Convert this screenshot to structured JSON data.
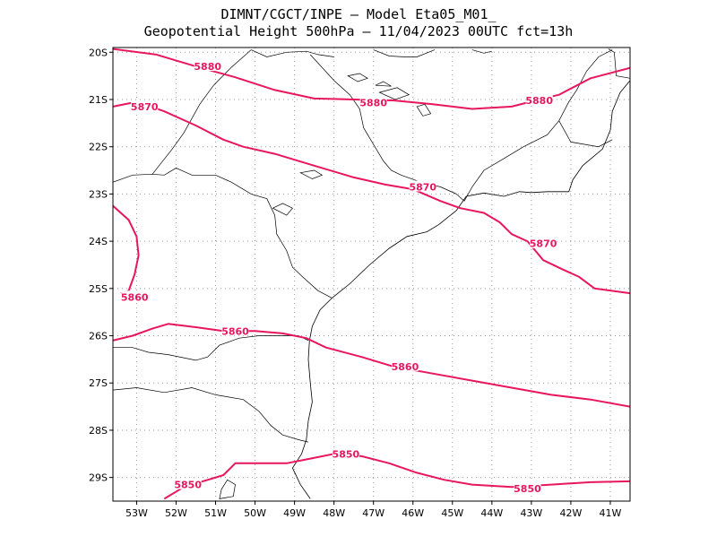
{
  "header": {
    "line1": "DIMNT/CGCT/INPE  –  Model Eta05_M01_",
    "line2": "Geopotential Height 500hPa –  11/04/2023 00UTC fct=13h"
  },
  "colors": {
    "contour": "#e8175d",
    "coast": "#000000",
    "grid": "#9a9a9a"
  },
  "map": {
    "lon_range": [
      -53.6,
      -40.5
    ],
    "lat_range": [
      -29.5,
      -19.9
    ],
    "lon_ticks": [
      {
        "value": -53,
        "label": "53W"
      },
      {
        "value": -52,
        "label": "52W"
      },
      {
        "value": -51,
        "label": "51W"
      },
      {
        "value": -50,
        "label": "50W"
      },
      {
        "value": -49,
        "label": "49W"
      },
      {
        "value": -48,
        "label": "48W"
      },
      {
        "value": -47,
        "label": "47W"
      },
      {
        "value": -46,
        "label": "46W"
      },
      {
        "value": -45,
        "label": "45W"
      },
      {
        "value": -44,
        "label": "44W"
      },
      {
        "value": -43,
        "label": "43W"
      },
      {
        "value": -42,
        "label": "42W"
      },
      {
        "value": -41,
        "label": "41W"
      }
    ],
    "lat_ticks": [
      {
        "value": -20,
        "label": "20S"
      },
      {
        "value": -21,
        "label": "21S"
      },
      {
        "value": -22,
        "label": "22S"
      },
      {
        "value": -23,
        "label": "23S"
      },
      {
        "value": -24,
        "label": "24S"
      },
      {
        "value": -25,
        "label": "25S"
      },
      {
        "value": -26,
        "label": "26S"
      },
      {
        "value": -27,
        "label": "27S"
      },
      {
        "value": -28,
        "label": "28S"
      },
      {
        "value": -29,
        "label": "29S"
      }
    ],
    "grid": true
  },
  "contours": [
    {
      "value": 5880,
      "points": [
        [
          -53.6,
          -19.93
        ],
        [
          -52.5,
          -20.05
        ],
        [
          -51.5,
          -20.3
        ],
        [
          -50.5,
          -20.53
        ],
        [
          -49.5,
          -20.8
        ],
        [
          -48.5,
          -20.98
        ],
        [
          -47.5,
          -21.0
        ],
        [
          -46.5,
          -21.02
        ],
        [
          -45.5,
          -21.1
        ],
        [
          -44.5,
          -21.2
        ],
        [
          -43.5,
          -21.15
        ],
        [
          -42.8,
          -21.0
        ],
        [
          -42.3,
          -20.9
        ],
        [
          -41.5,
          -20.55
        ],
        [
          -40.5,
          -20.33
        ]
      ]
    },
    {
      "value": 5870,
      "points": [
        [
          -53.6,
          -21.15
        ],
        [
          -53.0,
          -21.05
        ],
        [
          -52.3,
          -21.25
        ],
        [
          -51.5,
          -21.55
        ],
        [
          -50.8,
          -21.85
        ],
        [
          -50.3,
          -22.0
        ],
        [
          -49.5,
          -22.15
        ],
        [
          -48.5,
          -22.4
        ],
        [
          -47.5,
          -22.65
        ],
        [
          -46.7,
          -22.8
        ],
        [
          -46.0,
          -22.9
        ],
        [
          -45.3,
          -23.15
        ],
        [
          -44.8,
          -23.3
        ],
        [
          -44.2,
          -23.4
        ],
        [
          -43.8,
          -23.6
        ],
        [
          -43.5,
          -23.85
        ],
        [
          -43.1,
          -24.0
        ],
        [
          -42.9,
          -24.2
        ],
        [
          -42.7,
          -24.4
        ],
        [
          -42.2,
          -24.6
        ],
        [
          -41.8,
          -24.75
        ],
        [
          -41.4,
          -25.0
        ],
        [
          -40.5,
          -25.1
        ]
      ]
    },
    {
      "value": 5860,
      "points": [
        [
          -53.6,
          -23.25
        ],
        [
          -53.2,
          -23.55
        ],
        [
          -53.0,
          -23.9
        ],
        [
          -52.95,
          -24.3
        ],
        [
          -53.05,
          -24.7
        ],
        [
          -53.2,
          -25.05
        ],
        [
          -53.4,
          -25.1
        ]
      ]
    },
    {
      "value": 5860,
      "points": [
        [
          -53.6,
          -26.1
        ],
        [
          -53.1,
          -26.0
        ],
        [
          -52.6,
          -25.85
        ],
        [
          -52.2,
          -25.75
        ],
        [
          -51.5,
          -25.82
        ],
        [
          -50.8,
          -25.9
        ],
        [
          -50.0,
          -25.9
        ],
        [
          -49.3,
          -25.95
        ],
        [
          -48.7,
          -26.05
        ],
        [
          -48.2,
          -26.25
        ],
        [
          -47.3,
          -26.45
        ],
        [
          -46.5,
          -26.65
        ],
        [
          -45.5,
          -26.8
        ],
        [
          -44.5,
          -26.95
        ],
        [
          -43.5,
          -27.1
        ],
        [
          -42.5,
          -27.25
        ],
        [
          -41.5,
          -27.35
        ],
        [
          -40.5,
          -27.5
        ]
      ]
    },
    {
      "value": 5850,
      "points": [
        [
          -52.3,
          -29.45
        ],
        [
          -51.8,
          -29.2
        ],
        [
          -51.2,
          -29.05
        ],
        [
          -50.8,
          -28.95
        ],
        [
          -50.5,
          -28.7
        ],
        [
          -49.8,
          -28.7
        ],
        [
          -49.2,
          -28.7
        ],
        [
          -48.6,
          -28.6
        ],
        [
          -48.0,
          -28.5
        ],
        [
          -47.3,
          -28.55
        ],
        [
          -46.6,
          -28.7
        ],
        [
          -45.9,
          -28.9
        ],
        [
          -45.2,
          -29.05
        ],
        [
          -44.5,
          -29.15
        ],
        [
          -43.5,
          -29.2
        ],
        [
          -42.5,
          -29.15
        ],
        [
          -41.5,
          -29.1
        ],
        [
          -40.5,
          -29.08
        ]
      ]
    }
  ],
  "contour_labels": [
    {
      "text": "5880",
      "lon": -51.2,
      "lat": -20.3
    },
    {
      "text": "5880",
      "lon": -47.0,
      "lat": -21.07
    },
    {
      "text": "5880",
      "lon": -42.8,
      "lat": -21.02
    },
    {
      "text": "5870",
      "lon": -52.8,
      "lat": -21.15
    },
    {
      "text": "5870",
      "lon": -45.75,
      "lat": -22.85
    },
    {
      "text": "5870",
      "lon": -42.7,
      "lat": -24.05
    },
    {
      "text": "5860",
      "lon": -53.05,
      "lat": -25.18
    },
    {
      "text": "5860",
      "lon": -50.5,
      "lat": -25.9
    },
    {
      "text": "5860",
      "lon": -46.2,
      "lat": -26.65
    },
    {
      "text": "5850",
      "lon": -47.7,
      "lat": -28.5
    },
    {
      "text": "5850",
      "lon": -43.1,
      "lat": -29.23
    },
    {
      "text": "5850",
      "lon": -51.7,
      "lat": -29.15
    }
  ],
  "boundaries": [
    [
      [
        -53.6,
        -27.15
      ],
      [
        -53.0,
        -27.1
      ],
      [
        -52.3,
        -27.2
      ],
      [
        -51.6,
        -27.1
      ],
      [
        -51.0,
        -27.25
      ],
      [
        -50.3,
        -27.35
      ],
      [
        -49.9,
        -27.6
      ],
      [
        -49.6,
        -27.9
      ],
      [
        -49.3,
        -28.1
      ],
      [
        -48.9,
        -28.2
      ],
      [
        -48.65,
        -28.25
      ]
    ],
    [
      [
        -53.6,
        -26.25
      ],
      [
        -53.1,
        -26.25
      ],
      [
        -52.7,
        -26.35
      ],
      [
        -52.2,
        -26.4
      ],
      [
        -51.5,
        -26.52
      ],
      [
        -51.2,
        -26.45
      ],
      [
        -50.9,
        -26.2
      ],
      [
        -50.4,
        -26.05
      ],
      [
        -49.9,
        -26.0
      ],
      [
        -49.3,
        -26.0
      ],
      [
        -48.9,
        -26.0
      ],
      [
        -48.65,
        -26.1
      ]
    ],
    [
      [
        -53.6,
        -22.75
      ],
      [
        -53.1,
        -22.6
      ],
      [
        -52.6,
        -22.58
      ],
      [
        -52.3,
        -22.6
      ],
      [
        -52.0,
        -22.45
      ],
      [
        -51.6,
        -22.6
      ],
      [
        -51.0,
        -22.6
      ],
      [
        -50.6,
        -22.75
      ],
      [
        -50.1,
        -23.0
      ],
      [
        -49.7,
        -23.1
      ],
      [
        -49.5,
        -23.45
      ],
      [
        -49.45,
        -23.85
      ],
      [
        -49.2,
        -24.2
      ],
      [
        -49.05,
        -24.55
      ],
      [
        -48.8,
        -24.75
      ],
      [
        -48.4,
        -25.05
      ],
      [
        -48.05,
        -25.2
      ]
    ],
    [
      [
        -52.6,
        -22.58
      ],
      [
        -52.1,
        -22.05
      ],
      [
        -51.8,
        -21.7
      ],
      [
        -51.4,
        -21.1
      ],
      [
        -51.05,
        -20.7
      ],
      [
        -50.6,
        -20.32
      ],
      [
        -50.1,
        -19.95
      ]
    ],
    [
      [
        -48.0,
        -20.1
      ],
      [
        -48.4,
        -20.05
      ],
      [
        -48.7,
        -19.98
      ],
      [
        -49.2,
        -20.0
      ],
      [
        -49.7,
        -20.1
      ],
      [
        -50.1,
        -19.95
      ]
    ],
    [
      [
        -47.0,
        -19.95
      ],
      [
        -46.6,
        -20.08
      ],
      [
        -46.2,
        -20.1
      ],
      [
        -45.9,
        -20.1
      ],
      [
        -45.45,
        -19.95
      ]
    ],
    [
      [
        -44.5,
        -19.95
      ],
      [
        -44.2,
        -20.02
      ],
      [
        -44.0,
        -19.98
      ]
    ],
    [
      [
        -48.6,
        -20.05
      ],
      [
        -48.0,
        -20.6
      ],
      [
        -47.6,
        -20.9
      ],
      [
        -47.35,
        -21.2
      ],
      [
        -47.25,
        -21.6
      ],
      [
        -47.0,
        -21.95
      ],
      [
        -46.75,
        -22.3
      ],
      [
        -46.55,
        -22.5
      ],
      [
        -46.3,
        -22.6
      ],
      [
        -45.8,
        -22.75
      ],
      [
        -45.3,
        -22.85
      ],
      [
        -44.9,
        -23.0
      ],
      [
        -44.7,
        -23.15
      ]
    ],
    [
      [
        -44.7,
        -23.15
      ],
      [
        -44.5,
        -22.85
      ],
      [
        -44.2,
        -22.5
      ],
      [
        -43.7,
        -22.25
      ],
      [
        -43.2,
        -22.0
      ],
      [
        -42.6,
        -21.75
      ],
      [
        -42.3,
        -21.45
      ],
      [
        -42.05,
        -21.05
      ],
      [
        -41.85,
        -20.8
      ],
      [
        -41.6,
        -20.4
      ],
      [
        -41.3,
        -20.1
      ],
      [
        -40.95,
        -19.95
      ]
    ],
    [
      [
        -42.3,
        -21.45
      ],
      [
        -42.0,
        -21.9
      ],
      [
        -41.3,
        -22.0
      ],
      [
        -40.95,
        -21.85
      ]
    ],
    [
      [
        -41.05,
        -19.93
      ],
      [
        -40.9,
        -20.0
      ],
      [
        -40.85,
        -20.5
      ],
      [
        -40.5,
        -20.55
      ]
    ]
  ],
  "coastline": [
    [
      -48.6,
      -29.45
    ],
    [
      -48.85,
      -29.15
    ],
    [
      -49.05,
      -28.8
    ],
    [
      -48.82,
      -28.5
    ],
    [
      -48.7,
      -28.2
    ],
    [
      -48.65,
      -27.8
    ],
    [
      -48.55,
      -27.4
    ],
    [
      -48.6,
      -27.0
    ],
    [
      -48.65,
      -26.5
    ],
    [
      -48.62,
      -26.1
    ],
    [
      -48.55,
      -25.8
    ],
    [
      -48.35,
      -25.45
    ],
    [
      -48.05,
      -25.2
    ],
    [
      -47.6,
      -24.9
    ],
    [
      -47.1,
      -24.5
    ],
    [
      -46.6,
      -24.15
    ],
    [
      -46.15,
      -23.9
    ],
    [
      -45.65,
      -23.8
    ],
    [
      -45.35,
      -23.65
    ],
    [
      -44.9,
      -23.35
    ],
    [
      -44.65,
      -23.05
    ],
    [
      -44.2,
      -22.98
    ],
    [
      -43.7,
      -23.05
    ],
    [
      -43.3,
      -22.95
    ],
    [
      -43.0,
      -22.97
    ],
    [
      -42.6,
      -22.95
    ],
    [
      -42.05,
      -22.95
    ],
    [
      -41.95,
      -22.7
    ],
    [
      -41.7,
      -22.4
    ],
    [
      -41.2,
      -22.05
    ],
    [
      -41.0,
      -21.65
    ],
    [
      -40.95,
      -21.25
    ],
    [
      -40.75,
      -20.85
    ],
    [
      -40.5,
      -20.6
    ]
  ],
  "lagoon": [
    [
      -50.9,
      -29.45
    ],
    [
      -50.85,
      -29.25
    ],
    [
      -50.7,
      -29.05
    ],
    [
      -50.5,
      -29.15
    ],
    [
      -50.55,
      -29.4
    ]
  ],
  "reservoirs": [
    [
      [
        -49.55,
        -23.3
      ],
      [
        -49.3,
        -23.2
      ],
      [
        -49.05,
        -23.3
      ],
      [
        -49.2,
        -23.45
      ]
    ],
    [
      [
        -48.85,
        -22.55
      ],
      [
        -48.5,
        -22.5
      ],
      [
        -48.3,
        -22.6
      ],
      [
        -48.55,
        -22.68
      ]
    ],
    [
      [
        -47.65,
        -20.5
      ],
      [
        -47.35,
        -20.45
      ],
      [
        -47.15,
        -20.55
      ],
      [
        -47.4,
        -20.62
      ]
    ],
    [
      [
        -46.85,
        -20.85
      ],
      [
        -46.4,
        -20.75
      ],
      [
        -46.1,
        -20.9
      ],
      [
        -46.45,
        -21.0
      ]
    ],
    [
      [
        -45.9,
        -21.15
      ],
      [
        -45.7,
        -21.1
      ],
      [
        -45.55,
        -21.3
      ],
      [
        -45.75,
        -21.35
      ]
    ],
    [
      [
        -46.95,
        -20.7
      ],
      [
        -46.75,
        -20.62
      ],
      [
        -46.55,
        -20.72
      ]
    ]
  ]
}
